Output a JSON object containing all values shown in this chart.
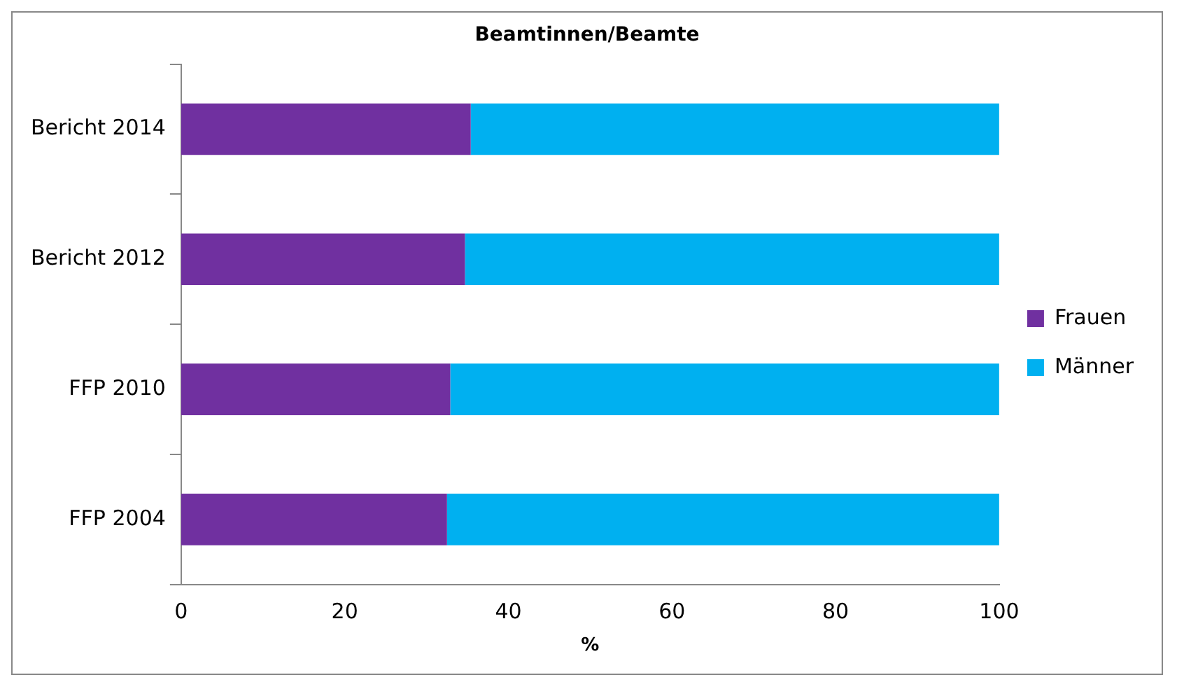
{
  "chart_data": {
    "type": "bar",
    "orientation": "horizontal",
    "stacked": true,
    "title": "Beamtinnen/Beamte",
    "xlabel": "%",
    "categories": [
      "Bericht 2014",
      "Bericht 2012",
      "FFP 2010",
      "FFP 2004"
    ],
    "series": [
      {
        "name": "Frauen",
        "color": "#7030a0",
        "values": [
          35.4,
          34.7,
          32.9,
          32.5
        ]
      },
      {
        "name": "Männer",
        "color": "#00b0f0",
        "values": [
          64.6,
          65.3,
          67.1,
          67.5
        ]
      }
    ],
    "xlim": [
      0,
      100
    ],
    "xticks": [
      0,
      20,
      40,
      60,
      80,
      100
    ],
    "grid": false,
    "legend": "right"
  }
}
